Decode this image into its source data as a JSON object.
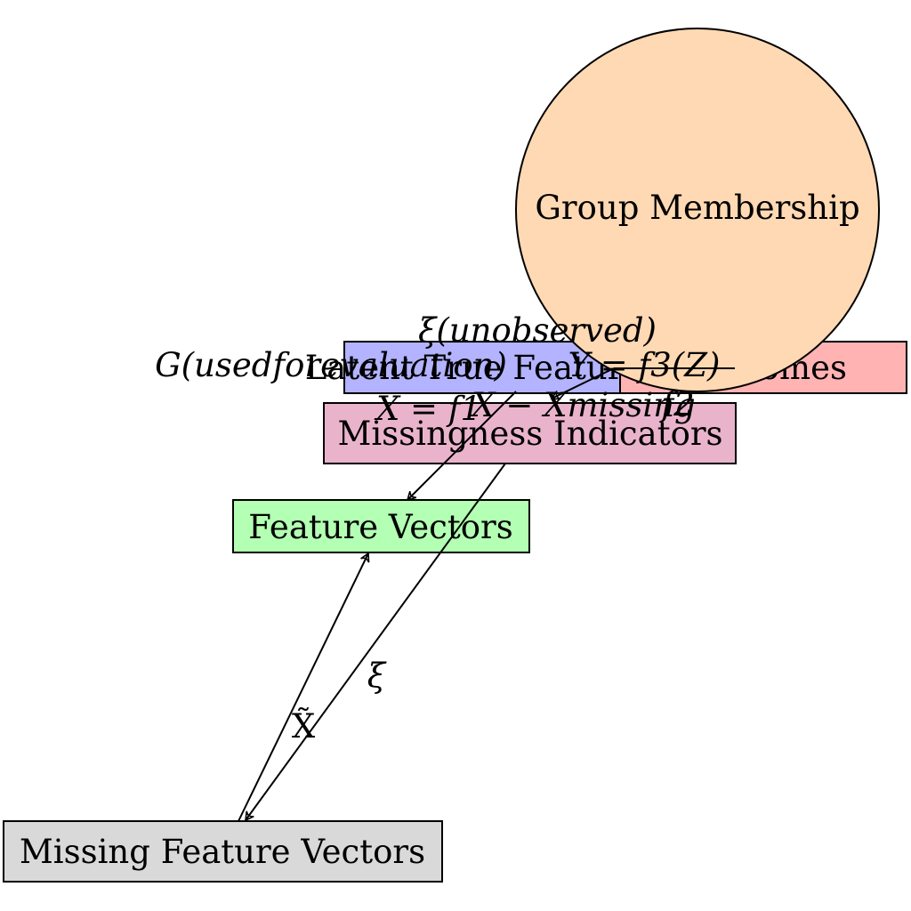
{
  "nodes": {
    "group_membership": {
      "label": "Group Membership",
      "fill": "#FFD9B3"
    },
    "latent_true_features": {
      "label": "Latent True Features",
      "fill": "#B3B3FF"
    },
    "outcomes": {
      "label": "Outcomes",
      "fill": "#FFB3B3"
    },
    "missingness_indicators": {
      "label": "Missingness Indicators",
      "fill": "#EAB3CC"
    },
    "feature_vectors": {
      "label": "Feature Vectors",
      "fill": "#B3FFB3"
    },
    "missing_feature_vectors": {
      "label": "Missing Feature Vectors",
      "fill": "#D9D9D9"
    }
  },
  "edge_labels": {
    "xi_unobserved": "ξ(unobserved)",
    "g_used": "G(usedforevaluation)",
    "y_f3": "Y = f3(Z)",
    "f2": "f2",
    "x_f1": "X = f1",
    "x_missing": "X − Xmissing",
    "xi": "ξ",
    "x_tilde": "X̃"
  }
}
